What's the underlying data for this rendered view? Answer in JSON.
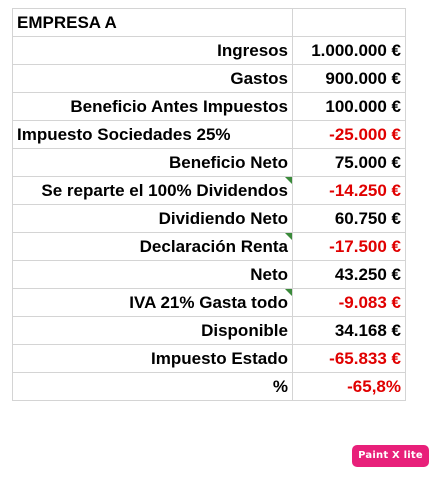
{
  "sheet": {
    "title": "EMPRESA A",
    "rows": [
      {
        "label": "Ingresos",
        "value": "1.000.000 €",
        "align": "right",
        "negative": false,
        "flag": false
      },
      {
        "label": "Gastos",
        "value": "900.000 €",
        "align": "right",
        "negative": false,
        "flag": false
      },
      {
        "label": "Beneficio Antes Impuestos",
        "value": "100.000 €",
        "align": "right",
        "negative": false,
        "flag": false
      },
      {
        "label": "Impuesto Sociedades 25%",
        "value": "-25.000 €",
        "align": "left",
        "negative": true,
        "flag": false
      },
      {
        "label": "Beneficio Neto",
        "value": "75.000 €",
        "align": "right",
        "negative": false,
        "flag": false
      },
      {
        "label": "Se reparte el 100% Dividendos",
        "value": "-14.250 €",
        "align": "right",
        "negative": true,
        "flag": true
      },
      {
        "label": "Dividiendo Neto",
        "value": "60.750 €",
        "align": "right",
        "negative": false,
        "flag": false
      },
      {
        "label": "Declaración Renta",
        "value": "-17.500 €",
        "align": "right",
        "negative": true,
        "flag": true
      },
      {
        "label": "Neto",
        "value": "43.250 €",
        "align": "right",
        "negative": false,
        "flag": false
      },
      {
        "label": "IVA 21% Gasta todo",
        "value": "-9.083 €",
        "align": "right",
        "negative": true,
        "flag": true
      },
      {
        "label": "Disponible",
        "value": "34.168 €",
        "align": "right",
        "negative": false,
        "flag": false
      },
      {
        "label": "Impuesto Estado",
        "value": "-65.833 €",
        "align": "right",
        "negative": true,
        "flag": false
      },
      {
        "label": "%",
        "value": "-65,8%",
        "align": "right",
        "negative": true,
        "flag": false
      }
    ]
  },
  "watermark": {
    "text": "Paint X lite"
  },
  "colors": {
    "negative": "#e00000",
    "flag": "#3a8a3a",
    "watermark_bg": "#e8207a",
    "grid": "#d4d4d4"
  }
}
